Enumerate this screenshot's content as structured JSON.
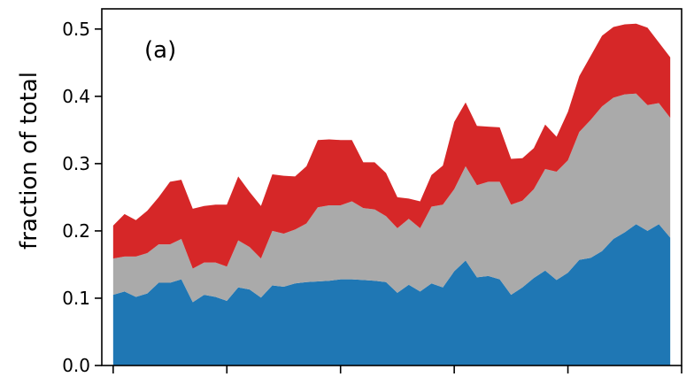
{
  "chart_data": {
    "type": "area",
    "stacked": true,
    "ylabel": "fraction of total",
    "xlabel": "",
    "annotation": "(a)",
    "ylim": [
      0,
      0.53
    ],
    "yticks": [
      0.0,
      0.1,
      0.2,
      0.3,
      0.4,
      0.5
    ],
    "ytick_labels": [
      "0.0",
      "0.1",
      "0.2",
      "0.3",
      "0.4",
      "0.5"
    ],
    "xlim": [
      -1,
      50
    ],
    "xticks": [
      0,
      10,
      20,
      30,
      40,
      50
    ],
    "grid": false,
    "legend": "none",
    "x": [
      0,
      1,
      2,
      3,
      4,
      5,
      6,
      7,
      8,
      9,
      10,
      11,
      12,
      13,
      14,
      15,
      16,
      17,
      18,
      19,
      20,
      21,
      22,
      23,
      24,
      25,
      26,
      27,
      28,
      29,
      30,
      31,
      32,
      33,
      34,
      35,
      36,
      37,
      38,
      39,
      40,
      41,
      42,
      43,
      44,
      45,
      46,
      47,
      48,
      49
    ],
    "series": [
      {
        "color": "#1f77b4",
        "values": [
          0.105,
          0.11,
          0.102,
          0.107,
          0.123,
          0.123,
          0.128,
          0.094,
          0.105,
          0.102,
          0.096,
          0.116,
          0.113,
          0.101,
          0.119,
          0.117,
          0.122,
          0.124,
          0.125,
          0.126,
          0.128,
          0.128,
          0.127,
          0.126,
          0.124,
          0.108,
          0.12,
          0.11,
          0.122,
          0.116,
          0.14,
          0.156,
          0.131,
          0.133,
          0.128,
          0.105,
          0.116,
          0.13,
          0.141,
          0.127,
          0.138,
          0.157,
          0.16,
          0.17,
          0.188,
          0.198,
          0.21,
          0.2,
          0.21,
          0.19
        ]
      },
      {
        "color": "#aaaaaa",
        "values": [
          0.054,
          0.052,
          0.06,
          0.06,
          0.057,
          0.057,
          0.06,
          0.05,
          0.048,
          0.051,
          0.051,
          0.07,
          0.063,
          0.058,
          0.081,
          0.079,
          0.08,
          0.087,
          0.11,
          0.112,
          0.11,
          0.116,
          0.107,
          0.106,
          0.098,
          0.096,
          0.098,
          0.094,
          0.114,
          0.123,
          0.122,
          0.14,
          0.137,
          0.14,
          0.145,
          0.134,
          0.129,
          0.132,
          0.151,
          0.161,
          0.167,
          0.19,
          0.205,
          0.215,
          0.21,
          0.205,
          0.194,
          0.187,
          0.18,
          0.178
        ]
      },
      {
        "color": "#d62728",
        "values": [
          0.049,
          0.063,
          0.054,
          0.063,
          0.07,
          0.093,
          0.088,
          0.089,
          0.084,
          0.086,
          0.092,
          0.095,
          0.082,
          0.078,
          0.084,
          0.086,
          0.079,
          0.085,
          0.1,
          0.098,
          0.097,
          0.091,
          0.068,
          0.07,
          0.064,
          0.046,
          0.03,
          0.04,
          0.047,
          0.058,
          0.1,
          0.095,
          0.088,
          0.082,
          0.081,
          0.068,
          0.063,
          0.061,
          0.066,
          0.052,
          0.072,
          0.083,
          0.095,
          0.105,
          0.105,
          0.104,
          0.104,
          0.115,
          0.09,
          0.09
        ]
      }
    ]
  }
}
